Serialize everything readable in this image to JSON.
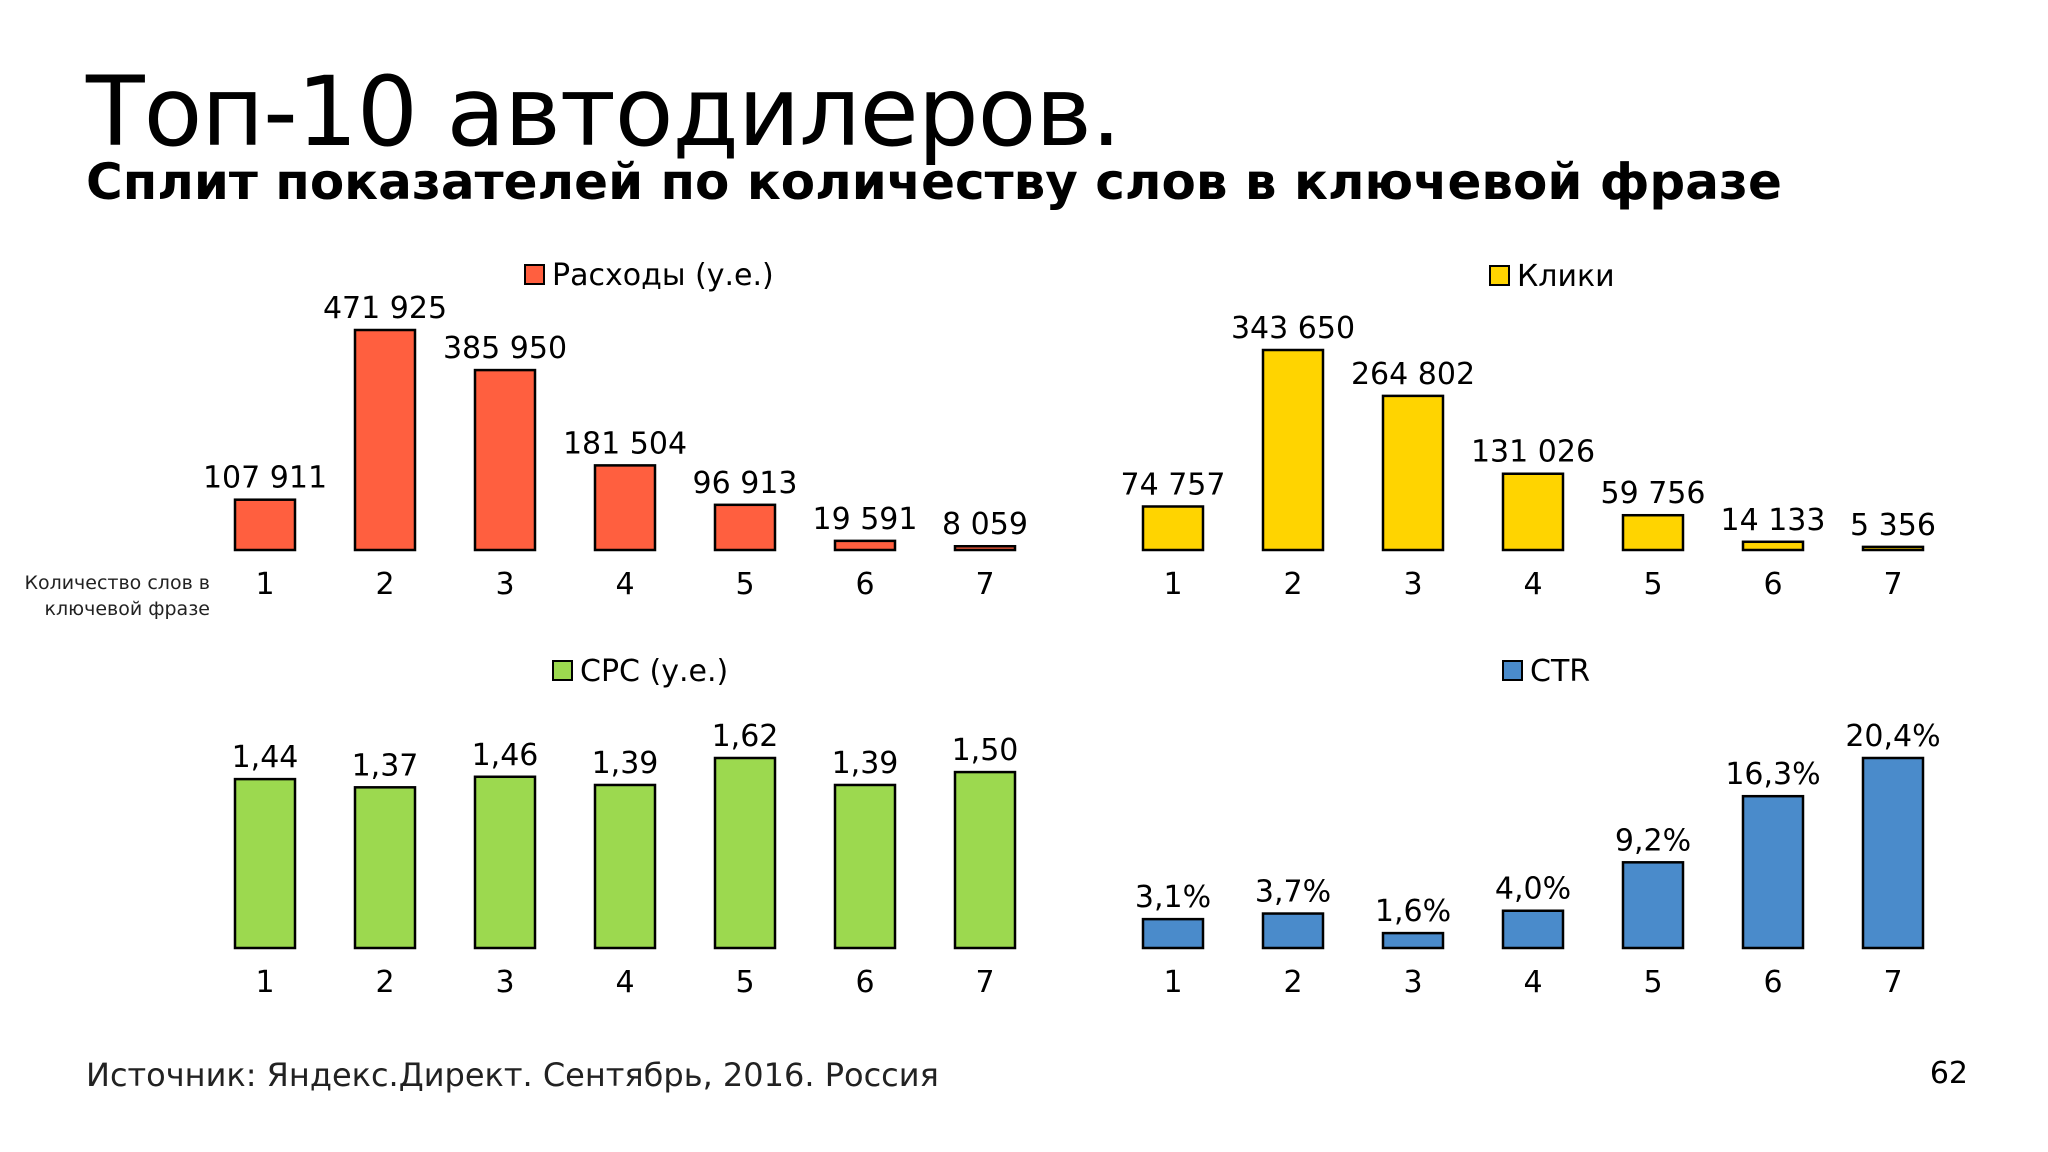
{
  "slide": {
    "title": "Топ-10 автодилеров.",
    "subtitle": "Сплит показателей по количеству слов в ключевой фразе",
    "axis_note": "Количество слов в ключевой фразе",
    "source": "Источник: Яндекс.Директ. Сентябрь, 2016. Россия",
    "page_number": "62"
  },
  "chart_data": [
    {
      "type": "bar",
      "categories": [
        "1",
        "2",
        "3",
        "4",
        "5",
        "6",
        "7"
      ],
      "series": [
        {
          "name": "Расходы (у.е.)",
          "values": [
            107911,
            471925,
            385950,
            181504,
            96913,
            19591,
            8059
          ],
          "labels": [
            "107 911",
            "471 925",
            "385 950",
            "181 504",
            "96 913",
            "19 591",
            "8 059"
          ],
          "color": "#FF5F3F"
        }
      ],
      "ylim": [
        0,
        471925
      ],
      "grid": false,
      "legend": "top"
    },
    {
      "type": "bar",
      "categories": [
        "1",
        "2",
        "3",
        "4",
        "5",
        "6",
        "7"
      ],
      "series": [
        {
          "name": "Клики",
          "values": [
            74757,
            343650,
            264802,
            131026,
            59756,
            14133,
            5356
          ],
          "labels": [
            "74 757",
            "343 650",
            "264 802",
            "131 026",
            "59 756",
            "14 133",
            "5 356"
          ],
          "color": "#FFD400"
        }
      ],
      "ylim": [
        0,
        343650
      ],
      "grid": false,
      "legend": "top"
    },
    {
      "type": "bar",
      "categories": [
        "1",
        "2",
        "3",
        "4",
        "5",
        "6",
        "7"
      ],
      "series": [
        {
          "name": "CPC (у.е.)",
          "values": [
            1.44,
            1.37,
            1.46,
            1.39,
            1.62,
            1.39,
            1.5
          ],
          "labels": [
            "1,44",
            "1,37",
            "1,46",
            "1,39",
            "1,62",
            "1,39",
            "1,50"
          ],
          "color": "#9CD94F"
        }
      ],
      "ylim": [
        0,
        1.62
      ],
      "grid": false,
      "legend": "top"
    },
    {
      "type": "bar",
      "categories": [
        "1",
        "2",
        "3",
        "4",
        "5",
        "6",
        "7"
      ],
      "series": [
        {
          "name": "CTR",
          "values": [
            3.1,
            3.7,
            1.6,
            4.0,
            9.2,
            16.3,
            20.4
          ],
          "labels": [
            "3,1%",
            "3,7%",
            "1,6%",
            "4,0%",
            "9,2%",
            "16,3%",
            "20,4%"
          ],
          "color": "#4A8BCB"
        }
      ],
      "ylim": [
        0,
        20.4
      ],
      "grid": false,
      "legend": "top"
    }
  ]
}
